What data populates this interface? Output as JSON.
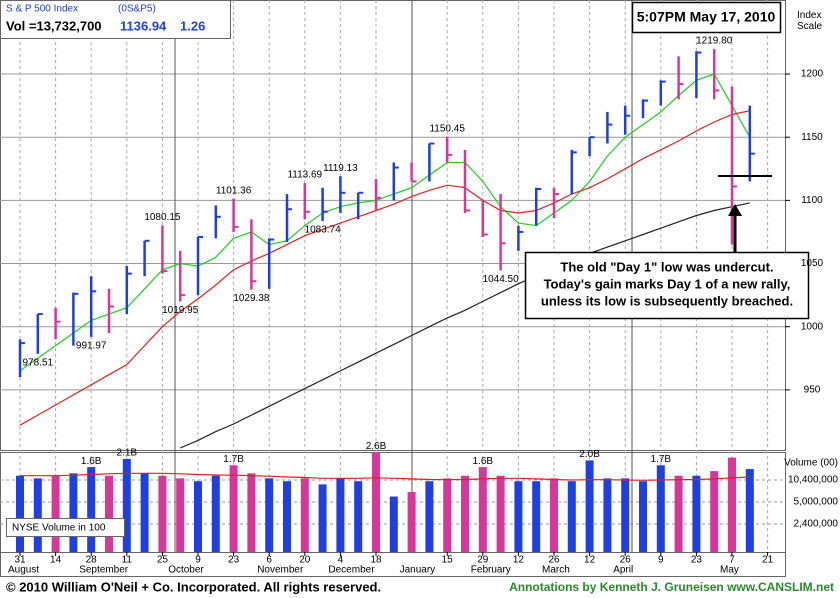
{
  "chart_data": {
    "type": "ohlc",
    "title": "S & P 500 Index",
    "symbol": "(0S&P5)",
    "volume_text": "Vol =13,732,700",
    "last": 1136.94,
    "change": 1.26,
    "timestamp": "5:07PM May 17, 2010",
    "y_label": "Index Scale",
    "volume_label": "Volume (00)",
    "volume_note": "NYSE Volume in 100",
    "callout": [
      "The old \"Day 1\" low was undercut.",
      "Today's gain marks Day 1 of a new rally,",
      "unless its low is subsequently breached."
    ],
    "copyright": "© 2010 William O'Neil + Co. Incorporated. All rights reserved.",
    "credit": "Annotations by Kenneth J. Gruneisen www.CANSLIM.net",
    "categories": [
      "31",
      null,
      "14",
      null,
      "28",
      null,
      "11",
      null,
      "25",
      null,
      "9",
      null,
      "23",
      null,
      "6",
      null,
      "20",
      null,
      "4",
      null,
      "18",
      null,
      null,
      null,
      "15",
      null,
      "29",
      null,
      "12",
      null,
      "26",
      null,
      "12",
      null,
      "26",
      null,
      "9",
      null,
      "23",
      null,
      "7",
      null,
      "21"
    ],
    "months": [
      "August",
      null,
      null,
      null,
      "September",
      null,
      null,
      null,
      null,
      "October",
      null,
      null,
      null,
      null,
      "November",
      null,
      null,
      null,
      "December",
      null,
      null,
      null,
      "January",
      null,
      null,
      null,
      "February",
      null,
      null,
      null,
      "March",
      null,
      null,
      null,
      "April",
      null,
      null,
      null,
      null,
      null,
      "May",
      null,
      null
    ],
    "high": [
      990,
      1010,
      1015,
      1027,
      1040,
      1030,
      1048,
      1068,
      1080.15,
      1060,
      1071,
      1096,
      1101.36,
      1085,
      1070,
      1105,
      1113.69,
      1110,
      1119.13,
      1106,
      1117,
      1130,
      1130,
      1145,
      1150.45,
      1140,
      1100,
      1105,
      1080,
      1110,
      1110,
      1140,
      1150,
      1170,
      1175,
      1180,
      1195,
      1214,
      1218,
      1219.8,
      1190,
      1175,
      null
    ],
    "low": [
      960,
      978.51,
      990,
      985,
      991.97,
      995,
      1010,
      1040,
      1042,
      1019.95,
      1025,
      1070,
      1075,
      1029.38,
      1030,
      1067,
      1085,
      1083.74,
      1090,
      1085,
      1092,
      1100,
      1115,
      1115,
      1130,
      1090,
      1071,
      1044.5,
      1060,
      1080,
      1086,
      1105,
      1135,
      1145,
      1152,
      1165,
      1175,
      1180,
      1181,
      1180,
      1065,
      1115,
      null
    ],
    "close": [
      987,
      1010,
      1004,
      1026,
      1028,
      1016,
      1042,
      1068,
      1044,
      1025,
      1071,
      1087,
      1079,
      1036,
      1069,
      1093,
      1091,
      1091,
      1106,
      1106,
      1102,
      1126,
      1115,
      1145,
      1136,
      1092,
      1073,
      1066,
      1075,
      1109,
      1105,
      1138,
      1150,
      1160,
      1167,
      1179,
      1194,
      1192,
      1217,
      1187,
      1111,
      1136.94,
      null
    ],
    "high_labels": [
      null,
      null,
      null,
      null,
      null,
      null,
      null,
      null,
      "1080.15",
      null,
      null,
      null,
      "1101.36",
      null,
      null,
      null,
      "1113.69",
      null,
      "1119.13",
      null,
      null,
      null,
      null,
      null,
      "1150.45",
      null,
      null,
      null,
      null,
      null,
      null,
      null,
      null,
      null,
      null,
      null,
      null,
      null,
      null,
      "1219.80",
      null,
      null,
      null
    ],
    "low_labels": [
      null,
      "978.51",
      null,
      null,
      "991.97",
      null,
      null,
      null,
      null,
      "1019.95",
      null,
      null,
      null,
      "1029.38",
      null,
      null,
      null,
      "1083.74",
      null,
      null,
      null,
      null,
      null,
      null,
      null,
      null,
      null,
      "1044.50",
      null,
      null,
      null,
      null,
      null,
      null,
      null,
      null,
      null,
      null,
      null,
      null,
      null,
      null,
      null
    ],
    "up_color": "#1f3fe0",
    "down_color": "#d8369a",
    "series": [
      {
        "color": "#22cc22",
        "values": [
          965,
          975,
          985,
          995,
          1005,
          1010,
          1015,
          1030,
          1045,
          1050,
          1048,
          1055,
          1070,
          1075,
          1065,
          1068,
          1080,
          1090,
          1095,
          1098,
          1100,
          1105,
          1110,
          1120,
          1130,
          1130,
          1115,
          1095,
          1082,
          1080,
          1090,
          1100,
          1115,
          1135,
          1150,
          1160,
          1170,
          1183,
          1195,
          1200,
          1175,
          1150,
          null
        ]
      },
      {
        "color": "#dd2222",
        "values": [
          922,
          930,
          938,
          946,
          954,
          962,
          970,
          985,
          1000,
          1012,
          1022,
          1033,
          1045,
          1052,
          1058,
          1065,
          1072,
          1077,
          1082,
          1087,
          1092,
          1097,
          1103,
          1108,
          1112,
          1110,
          1100,
          1092,
          1090,
          1092,
          1098,
          1105,
          1110,
          1117,
          1125,
          1133,
          1140,
          1147,
          1155,
          1162,
          1168,
          1171,
          null
        ]
      },
      {
        "color": "#222222",
        "values": [
          null,
          null,
          null,
          null,
          null,
          null,
          null,
          null,
          null,
          904,
          910,
          917,
          923,
          930,
          937,
          944,
          951,
          958,
          965,
          972,
          979,
          986,
          993,
          1000,
          1007,
          1013,
          1020,
          1027,
          1034,
          1040,
          1046,
          1052,
          1058,
          1063,
          1068,
          1073,
          1078,
          1083,
          1088,
          1092,
          1095,
          1098,
          null
        ]
      }
    ],
    "ylim": [
      902.4,
      1258.6
    ],
    "yticks": [
      950,
      1000,
      1050,
      1100,
      1150,
      1200
    ],
    "volume": [
      12000000,
      11000000,
      12000000,
      13000000,
      16000000,
      12000000,
      21000000,
      13000000,
      12000000,
      11000000,
      10000000,
      12000000,
      17000000,
      13000000,
      11000000,
      10000000,
      11000000,
      9000000,
      11000000,
      10000000,
      26000000,
      6000000,
      7000000,
      10000000,
      11000000,
      12000000,
      16000000,
      12000000,
      10000000,
      10000000,
      11000000,
      10000000,
      20000000,
      11000000,
      11000000,
      10000000,
      17000000,
      12000000,
      12000000,
      14000000,
      22000000,
      15000000,
      null
    ],
    "volume_labels": [
      null,
      null,
      null,
      null,
      "1.6B",
      null,
      "2.1B",
      null,
      null,
      null,
      null,
      null,
      "1.7B",
      null,
      null,
      null,
      null,
      null,
      null,
      null,
      "2.6B",
      null,
      null,
      null,
      null,
      null,
      "1.6B",
      null,
      null,
      null,
      null,
      null,
      "2.0B",
      null,
      null,
      null,
      "1.7B",
      null,
      null,
      null,
      null,
      null,
      null
    ],
    "volume_average": {
      "color": "#dd2222",
      "values": [
        12000000,
        12000000,
        12000000,
        12200000,
        12500000,
        12800000,
        13000000,
        13000000,
        13000000,
        12800000,
        12500000,
        12300000,
        12200000,
        12000000,
        11800000,
        11500000,
        11300000,
        11000000,
        11000000,
        11000000,
        11200000,
        11000000,
        10800000,
        10600000,
        10500000,
        10600000,
        10800000,
        11000000,
        11000000,
        10800000,
        10600000,
        10400000,
        10500000,
        10500000,
        10400000,
        10300000,
        10400000,
        10500000,
        10600000,
        10800000,
        11200000,
        11500000,
        null
      ]
    },
    "y2lim": [
      942000,
      26500000
    ],
    "y2ticks": [
      {
        "value": 10400000,
        "label": "10,400,000"
      },
      {
        "value": 5000000,
        "label": "5,000,000"
      },
      {
        "value": 2400000,
        "label": "2,400,000"
      }
    ],
    "y2_log": true,
    "grid": true
  }
}
